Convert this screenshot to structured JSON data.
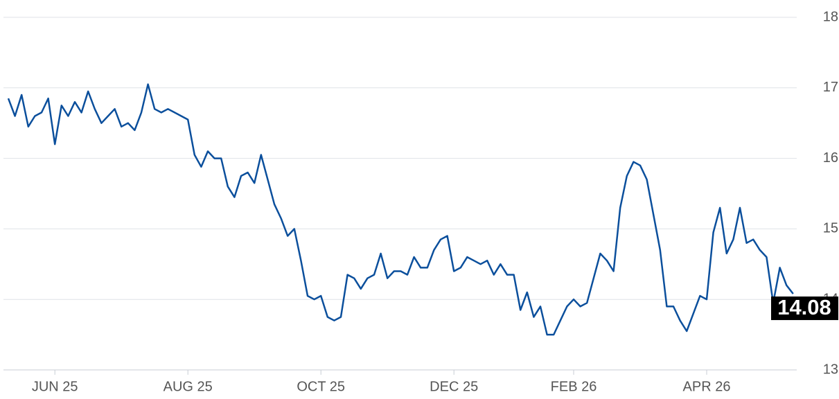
{
  "chart_data": {
    "type": "line",
    "categories": [
      null,
      null,
      null,
      null,
      null,
      null,
      null,
      "JUN 25",
      null,
      null,
      null,
      null,
      null,
      null,
      null,
      null,
      null,
      null,
      null,
      null,
      null,
      null,
      null,
      null,
      null,
      null,
      null,
      "AUG 25",
      null,
      null,
      null,
      null,
      null,
      null,
      null,
      null,
      null,
      null,
      null,
      null,
      null,
      null,
      null,
      null,
      null,
      null,
      null,
      "OCT 25",
      null,
      null,
      null,
      null,
      null,
      null,
      null,
      null,
      null,
      null,
      null,
      null,
      null,
      null,
      null,
      null,
      null,
      null,
      null,
      "DEC 25",
      null,
      null,
      null,
      null,
      null,
      null,
      null,
      null,
      null,
      null,
      null,
      null,
      null,
      null,
      null,
      null,
      null,
      "FEB 26",
      null,
      null,
      null,
      null,
      null,
      null,
      null,
      null,
      null,
      null,
      null,
      null,
      null,
      null,
      null,
      null,
      null,
      null,
      null,
      "APR 26",
      null,
      null,
      null,
      null,
      null,
      null,
      null,
      null,
      null,
      null,
      null,
      null,
      null
    ],
    "values": [
      16.85,
      16.6,
      16.9,
      16.45,
      16.6,
      16.65,
      16.85,
      16.2,
      16.75,
      16.6,
      16.8,
      16.65,
      16.95,
      16.7,
      16.5,
      16.6,
      16.7,
      16.45,
      16.5,
      16.4,
      16.65,
      17.05,
      16.7,
      16.65,
      16.7,
      16.65,
      16.6,
      16.55,
      16.05,
      15.88,
      16.1,
      16.0,
      16.0,
      15.6,
      15.45,
      15.75,
      15.8,
      15.65,
      16.05,
      15.7,
      15.35,
      15.15,
      14.9,
      15.0,
      14.55,
      14.05,
      14.0,
      14.05,
      13.75,
      13.7,
      13.75,
      14.35,
      14.3,
      14.15,
      14.3,
      14.35,
      14.65,
      14.3,
      14.4,
      14.4,
      14.35,
      14.6,
      14.45,
      14.45,
      14.7,
      14.85,
      14.9,
      14.4,
      14.45,
      14.6,
      14.55,
      14.5,
      14.55,
      14.35,
      14.5,
      14.35,
      14.35,
      13.85,
      14.1,
      13.75,
      13.9,
      13.5,
      13.5,
      13.7,
      13.9,
      14.0,
      13.9,
      13.95,
      14.3,
      14.65,
      14.55,
      14.4,
      15.3,
      15.75,
      15.95,
      15.9,
      15.7,
      15.2,
      14.7,
      13.9,
      13.9,
      13.7,
      13.55,
      13.8,
      14.05,
      14.0,
      14.95,
      15.3,
      14.65,
      14.85,
      15.3,
      14.8,
      14.85,
      14.7,
      14.6,
      13.95,
      14.45,
      14.2,
      14.08
    ],
    "color": "#0b4f9c",
    "ylim": [
      13,
      18
    ],
    "yticks": [
      13,
      14,
      15,
      16,
      17,
      18
    ],
    "grid": true
  }
}
